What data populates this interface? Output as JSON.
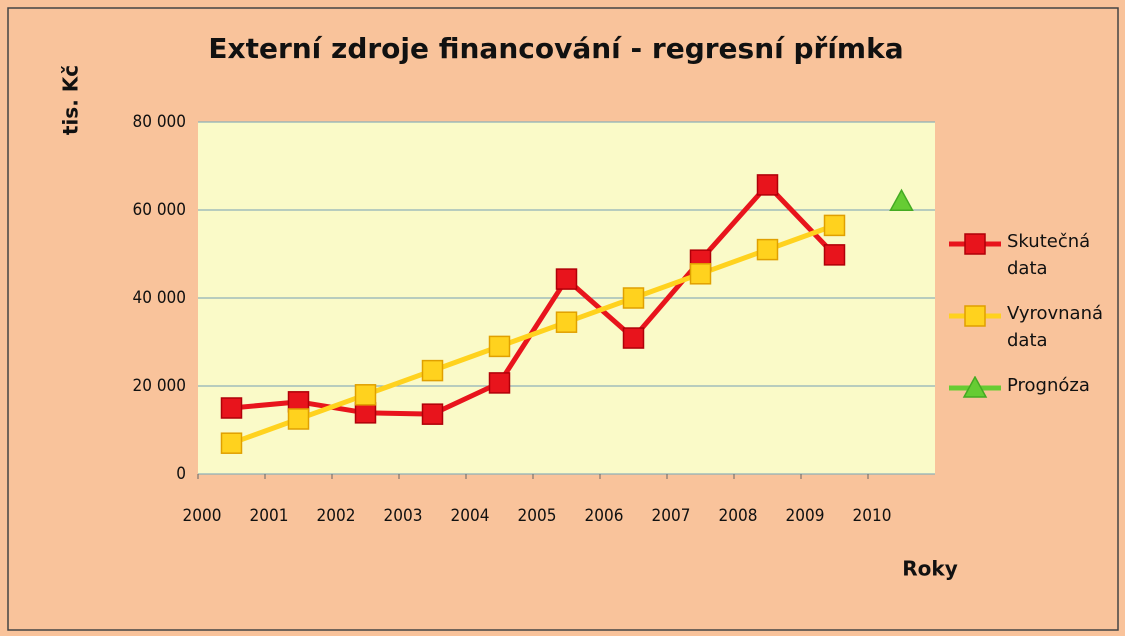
{
  "chart_data": {
    "type": "line",
    "title": "Externí zdroje financování - regresní přímka",
    "y_label": "tis. Kč",
    "x_label": "Roky",
    "x": [
      2000.5,
      2001.5,
      2002.5,
      2003.5,
      2004.5,
      2005.5,
      2006.5,
      2007.5,
      2008.5,
      2009.5,
      2010.5
    ],
    "series": [
      {
        "name": "Skutečná data",
        "color": "#e8141c",
        "marker": "square",
        "values": [
          15000,
          16400,
          13900,
          13600,
          20700,
          44300,
          30900,
          48600,
          65700,
          49800,
          null
        ]
      },
      {
        "name": "Vyrovnaná data",
        "color": "#ffd21e",
        "marker": "square",
        "values": [
          7000,
          12500,
          18000,
          23500,
          29000,
          34500,
          40000,
          45500,
          51000,
          56500,
          null
        ]
      },
      {
        "name": "Prognóza",
        "color": "#66cc33",
        "marker": "triangle",
        "values": [
          null,
          null,
          null,
          null,
          null,
          null,
          null,
          null,
          null,
          null,
          62000
        ]
      }
    ],
    "xlim": [
      2000,
      2011
    ],
    "xticks": [
      2000,
      2001,
      2002,
      2003,
      2004,
      2005,
      2006,
      2007,
      2008,
      2009,
      2010
    ],
    "ylim": [
      0,
      80000
    ],
    "yticks": [
      0,
      {
        "value": 20000,
        "label": "20 000"
      },
      {
        "value": 40000,
        "label": "40 000"
      },
      {
        "value": 60000,
        "label": "60 000"
      },
      {
        "value": 80000,
        "label": "80 000"
      }
    ],
    "grid": true,
    "legend": "right"
  }
}
